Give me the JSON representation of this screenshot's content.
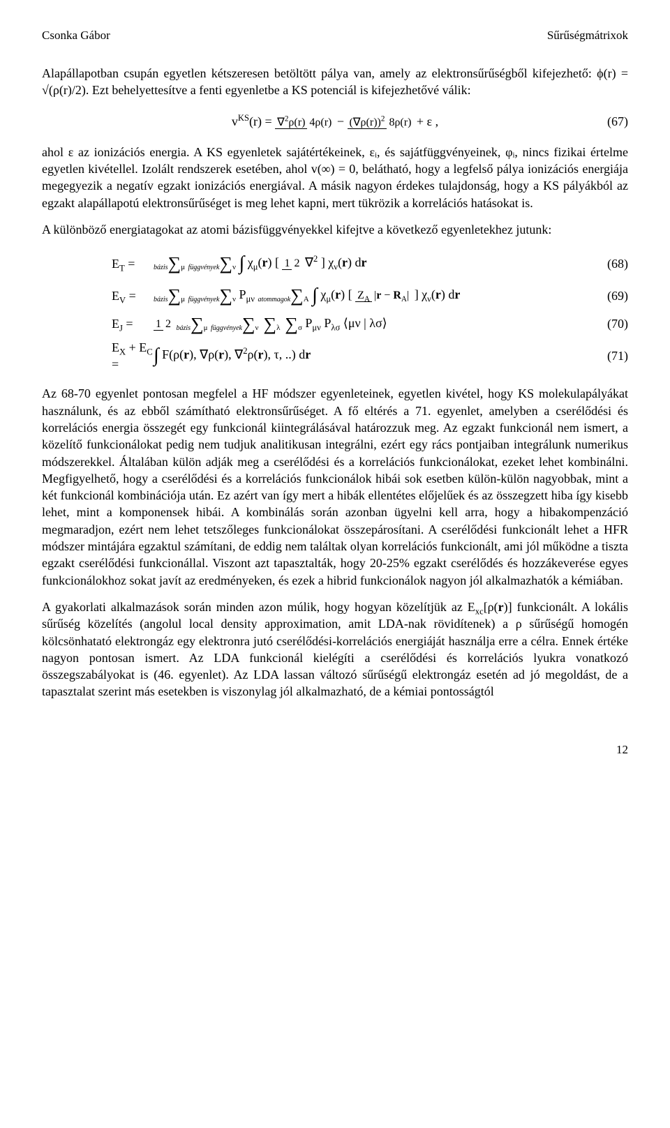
{
  "header": {
    "left": "Csonka Gábor",
    "right": "Sűrűségmátrixok"
  },
  "intro_para": "Alapállapotban csupán egyetlen kétszeresen betöltött pálya van, amely az elektronsűrűségből kifejezhető: ϕ(r) = √(ρ(r)/2). Ezt behelyettesítve a fenti egyenletbe a KS potenciál is kifejezhetővé válik:",
  "eq67": {
    "formula_html": "v<sup>KS</sup>(r) = <span class=\"frac\"><span class=\"num\">∇<sup>2</sup>ρ(r)</span><span class=\"den\">4ρ(r)</span></span> − <span class=\"frac\"><span class=\"num\">(∇ρ(r))<sup>2</sup></span><span class=\"den\">8ρ(r)</span></span> + ε ,",
    "num": "(67)"
  },
  "after67_para": "ahol ε az ionizációs energia. A KS egyenletek sajátértékeinek, εᵢ, és sajátfüggvényeinek, φᵢ, nincs fizikai értelme egyetlen kivétellel. Izolált rendszerek esetében, ahol v(∞) = 0, belátható, hogy a legfelső pálya ionizációs energiája megegyezik a negatív egzakt ionizációs energiával. A másik nagyon érdekes tulajdonság, hogy a KS pályákból az egzakt alapállapotú elektronsűrűséget is meg lehet kapni, mert tükrözik a korrelációs hatásokat is.",
  "pre_eq_para": "A különböző energiatagokat az atomi bázisfüggvényekkel kifejtve a következő egyenletekhez jutunk:",
  "eq68": {
    "label": "E<sub>T</sub> =",
    "body_html": "<span class=\"sum-symbol\"><span class=\"sum-top\">bázis</span><span class=\"sum-sigma\">∑</span><span class=\"sum-bottom\">μ</span></span> <span class=\"sum-symbol\"><span class=\"sum-top\">függvények</span><span class=\"sum-sigma\">∑</span><span class=\"sum-bottom\">ν</span></span> <span class=\"big-int\">∫</span> χ<sub>μ</sub>(<b>r</b>) [ <span class=\"frac\"><span class=\"num\">1</span><span class=\"den\">2</span></span> ∇<sup>2</sup> ] χ<sub>ν</sub>(<b>r</b>) d<b>r</b>",
    "num": "(68)"
  },
  "eq69": {
    "label": "E<sub>V</sub> =",
    "body_html": "<span class=\"sum-symbol\"><span class=\"sum-top\">bázis</span><span class=\"sum-sigma\">∑</span><span class=\"sum-bottom\">μ</span></span> <span class=\"sum-symbol\"><span class=\"sum-top\">függvények</span><span class=\"sum-sigma\">∑</span><span class=\"sum-bottom\">ν</span></span> P<sub>μν</sub> <span class=\"sum-symbol\"><span class=\"sum-top\">atommagok</span><span class=\"sum-sigma\">∑</span><span class=\"sum-bottom\">A</span></span> <span class=\"big-int\">∫</span> χ<sub>μ</sub>(<b>r</b>) [ <span class=\"frac\"><span class=\"num\">Z<sub>A</sub></span><span class=\"den\">|<b>r</b> − <b>R</b><sub>A</sub>|</span></span> ] χ<sub>ν</sub>(<b>r</b>) d<b>r</b>",
    "num": "(69)"
  },
  "eq70": {
    "label": "E<sub>J</sub> =",
    "body_html": "<span class=\"frac\"><span class=\"num\">1</span><span class=\"den\">2</span></span> <span class=\"sum-symbol\"><span class=\"sum-top\">bázis</span><span class=\"sum-sigma\">∑</span><span class=\"sum-bottom\">μ</span></span> <span class=\"sum-symbol\"><span class=\"sum-top\">függvények</span><span class=\"sum-sigma\">∑</span><span class=\"sum-bottom\">ν</span></span> <span class=\"sum-symbol\"><span class=\"sum-top\">&nbsp;</span><span class=\"sum-sigma\">∑</span><span class=\"sum-bottom\">λ</span></span> <span class=\"sum-symbol\"><span class=\"sum-top\">&nbsp;</span><span class=\"sum-sigma\">∑</span><span class=\"sum-bottom\">σ</span></span> P<sub>μν</sub> P<sub>λσ</sub> ⟨μν | λσ⟩",
    "num": "(70)"
  },
  "eq71": {
    "label": "E<sub>X</sub> + E<sub>C</sub> =",
    "body_html": "<span class=\"big-int\">∫</span> F(ρ(<b>r</b>), ∇ρ(<b>r</b>), ∇<sup>2</sup>ρ(<b>r</b>), τ, ..) d<b>r</b>",
    "num": "(71)"
  },
  "long_para": "Az 68-70 egyenlet pontosan megfelel a HF módszer egyenleteinek, egyetlen kivétel, hogy KS molekulapályákat használunk, és az ebből számítható elektronsűrűséget. A fő eltérés a 71. egyenlet, amelyben a cserélődési és korrelációs energia összegét egy funkcionál kiintegrálásával határozzuk meg. Az egzakt funkcionál nem ismert, a közelítő funkcionálokat pedig nem tudjuk analitikusan integrálni, ezért egy rács pontjaiban integrálunk numerikus módszerekkel. Általában külön adják meg a cserélődési és a korrelációs funkcionálokat, ezeket lehet kombinálni. Megfigyelhető, hogy a cserélődési és a korrelációs funkcionálok hibái sok esetben külön-külön nagyobbak, mint a két funkcionál kombinációja után. Ez azért van így mert a hibák ellentétes előjelűek és az összegzett hiba így kisebb lehet, mint a komponensek hibái. A kombinálás során azonban ügyelni kell arra, hogy a hibakompenzáció megmaradjon, ezért nem lehet tetszőleges funkcionálokat összepárosítani. A cserélődési funkcionált lehet a HFR módszer mintájára egzaktul számítani, de eddig nem találtak olyan korrelációs funkcionált, ami jól működne a tiszta egzakt cserélődési funkcionállal. Viszont azt tapasztalták, hogy 20-25% egzakt cserélődés és hozzákeverése egyes funkcionálokhoz sokat javít az eredményeken, és ezek a hibrid funkcionálok nagyon jól alkalmazhatók a kémiában.",
  "last_para": "A gyakorlati alkalmazások során minden azon múlik, hogy hogyan közelítjük az E<sub>xc</sub>[ρ(<b>r</b>)] funkcionált. A lokális sűrűség közelítés (angolul local density approximation, amit LDA-nak rövidítenek) a ρ sűrűségű homogén kölcsönhatató elektrongáz egy elektronra jutó cserélődési-korrelációs energiáját használja erre a célra. Ennek értéke nagyon pontosan ismert. Az LDA funkcionál kielégíti a cserélődési és korrelációs lyukra vonatkozó összegszabályokat is (46. egyenlet). Az LDA lassan változó sűrűségű elektrongáz esetén ad jó megoldást, de a tapasztalat szerint más esetekben is viszonylag jól alkalmazható, de a kémiai pontosságtól",
  "footer": {
    "page": "12"
  }
}
